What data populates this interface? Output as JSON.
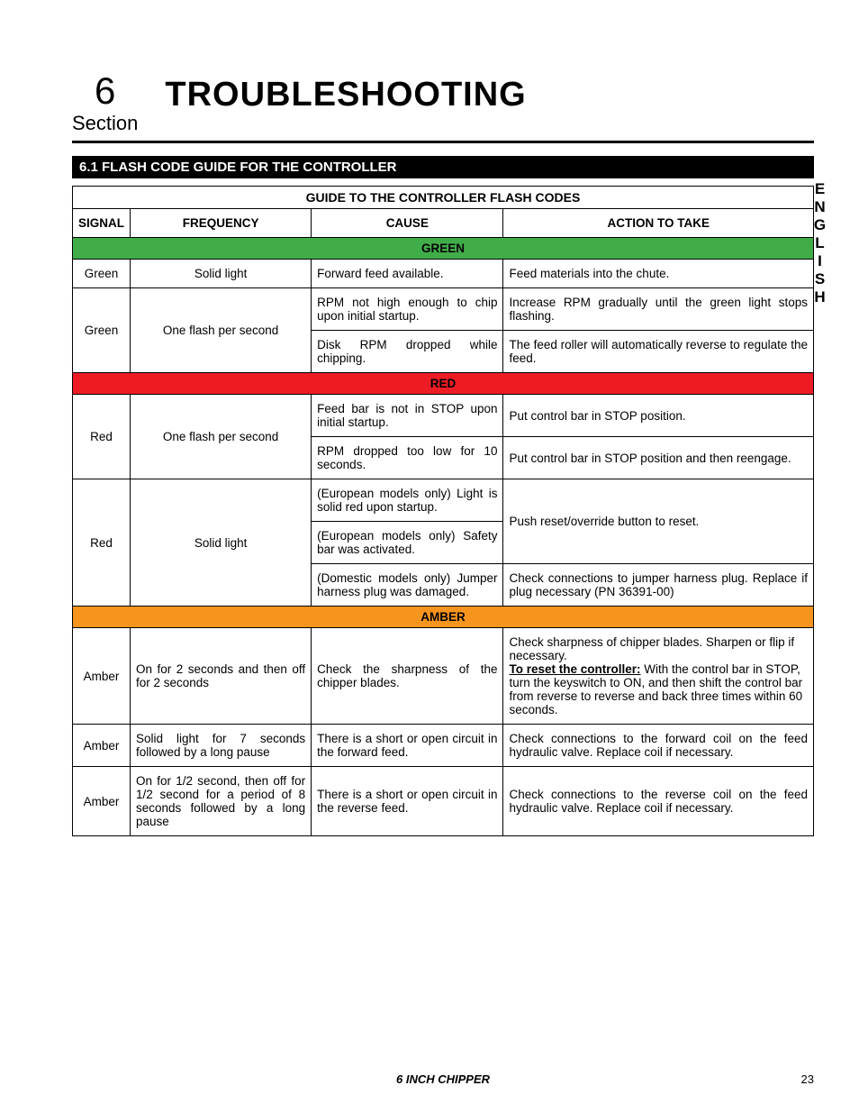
{
  "header": {
    "section_number": "6",
    "section_label": "Section",
    "title": "TROUBLESHOOTING"
  },
  "subheading": "6.1  FLASH CODE GUIDE FOR THE CONTROLLER",
  "side_label": "ENGLISH",
  "table": {
    "caption": "GUIDE TO THE CONTROLLER FLASH CODES",
    "headers": {
      "signal": "SIGNAL",
      "frequency": "FREQUENCY",
      "cause": "CAUSE",
      "action": "ACTION TO TAKE"
    },
    "bands": {
      "green": "GREEN",
      "red": "RED",
      "amber": "AMBER"
    },
    "green_rows": {
      "r1": {
        "signal": "Green",
        "freq": "Solid light",
        "cause": "Forward feed available.",
        "action": "Feed materials into the chute."
      },
      "r2": {
        "signal": "Green",
        "freq": "One flash per second",
        "cause_a": "RPM not high enough to chip upon initial startup.",
        "action_a": "Increase RPM gradually until the green light stops flashing.",
        "cause_b": "Disk RPM dropped while chipping.",
        "action_b": "The feed roller will automatically reverse to regulate the feed."
      }
    },
    "red_rows": {
      "r1": {
        "signal": "Red",
        "freq": "One flash per second",
        "cause_a": "Feed bar is not in STOP upon initial startup.",
        "action_a": "Put control bar in STOP position.",
        "cause_b": "RPM dropped too low for 10 seconds.",
        "action_b": "Put control bar in STOP position and then reengage."
      },
      "r2": {
        "signal": "Red",
        "freq": "Solid light",
        "cause_a": "(European models only) Light is solid red upon startup.",
        "cause_b": "(European models only) Safety bar was activated.",
        "action_ab": "Push reset/override button to reset.",
        "cause_c": "(Domestic models only) Jumper harness plug was damaged.",
        "action_c": "Check connections to jumper harness plug. Replace if plug necessary (PN 36391-00)"
      }
    },
    "amber_rows": {
      "r1": {
        "signal": "Amber",
        "freq": "On for 2 seconds and then off for 2 seconds",
        "cause": "Check the sharpness of the chipper blades.",
        "action_pre": "Check sharpness of chipper blades. Sharpen or flip if necessary.",
        "action_underline": "To reset the controller:",
        "action_post": " With the control bar in STOP, turn the keyswitch to ON, and then shift the control bar from reverse to reverse and back three times within 60 seconds."
      },
      "r2": {
        "signal": "Amber",
        "freq": "Solid light for 7 seconds followed by a long pause",
        "cause": "There is a short or open circuit in the forward feed.",
        "action": "Check connections to the forward coil on the feed hydraulic valve. Replace coil if necessary."
      },
      "r3": {
        "signal": "Amber",
        "freq": "On for 1/2 second, then off for 1/2 second for a period of 8 seconds followed by a long pause",
        "cause": "There is a short or open circuit in the reverse feed.",
        "action": "Check connections to the reverse coil on the feed hydraulic valve. Replace coil if necessary."
      }
    }
  },
  "footer": {
    "doc_title": "6 INCH CHIPPER",
    "page": "23"
  },
  "colors": {
    "green": "#41ad49",
    "red": "#ed1c24",
    "amber": "#f7941e",
    "black": "#000000",
    "white": "#ffffff"
  }
}
